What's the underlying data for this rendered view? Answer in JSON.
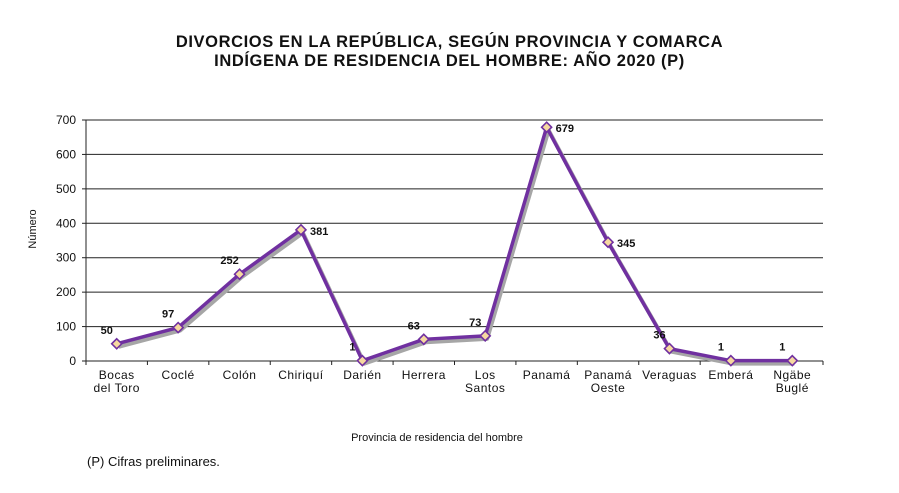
{
  "title_lines": [
    "DIVORCIOS EN LA REPÚBLICA, SEGÚN PROVINCIA Y COMARCA",
    "INDÍGENA DE RESIDENCIA DEL HOMBRE: AÑO 2020 (P)"
  ],
  "footnote": "(P) Cifras preliminares.",
  "colors": {
    "line": "#7030a0",
    "shadow": "#a6a6a6",
    "marker_fill": "#f6d8a0",
    "marker_stroke": "#7030a0",
    "grid": "#222222"
  },
  "chart_data": {
    "type": "line",
    "title": "DIVORCIOS EN LA REPÚBLICA, SEGÚN PROVINCIA Y COMARCA INDÍGENA DE RESIDENCIA DEL HOMBRE: AÑO 2020 (P)",
    "xlabel": "Provincia de residencia del hombre",
    "ylabel": "Número",
    "ylim": [
      0,
      700
    ],
    "yticks": [
      0,
      100,
      200,
      300,
      400,
      500,
      600,
      700
    ],
    "grid": true,
    "legend": "none",
    "categories": [
      [
        "Bocas",
        "del Toro"
      ],
      [
        "Coclé"
      ],
      [
        "Colón"
      ],
      [
        "Chiriquí"
      ],
      [
        "Darién"
      ],
      [
        "Herrera"
      ],
      [
        "Los",
        "Santos"
      ],
      [
        "Panamá"
      ],
      [
        "Panamá",
        "Oeste"
      ],
      [
        "Veraguas"
      ],
      [
        "Emberá"
      ],
      [
        "Ngäbe",
        "Buglé"
      ]
    ],
    "values": [
      50,
      97,
      252,
      381,
      1,
      63,
      73,
      679,
      345,
      36,
      1,
      1
    ],
    "data_labels": [
      "50",
      "97",
      "252",
      "381",
      "1",
      "63",
      "73",
      "679",
      "345",
      "36",
      "1",
      "1"
    ],
    "label_positions": [
      "above",
      "above",
      "above",
      "right",
      "above",
      "above",
      "above",
      "right",
      "right",
      "above",
      "above",
      "above"
    ]
  }
}
